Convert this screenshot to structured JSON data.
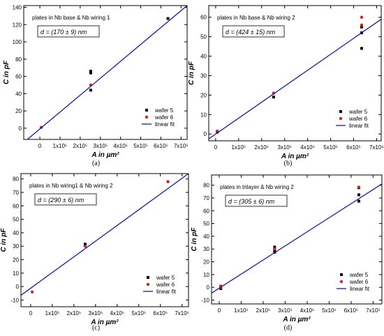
{
  "chart_data": [
    {
      "type": "scatter",
      "panel_label": "(a)",
      "annotation": "plates in Nb base & Nb wiring 1",
      "fit_label": "d = (170 ± 9) nm",
      "xlabel": "A in µm²",
      "ylabel": "C in pF",
      "xlim": [
        -80000,
        730000
      ],
      "ylim": [
        -13,
        142
      ],
      "xticks": [
        0,
        100000,
        200000,
        300000,
        400000,
        500000,
        600000,
        700000
      ],
      "xtick_labels": [
        "0",
        "1x10⁵",
        "2x10⁵",
        "3x10⁵",
        "4x10⁵",
        "5x10⁵",
        "6x10⁵",
        "7x10⁵"
      ],
      "yticks": [
        0,
        20,
        40,
        60,
        80,
        100,
        120,
        140
      ],
      "ytick_labels": [
        "0",
        "20",
        "40",
        "60",
        "80",
        "100",
        "120",
        "140"
      ],
      "series": [
        {
          "name": "wafer 5",
          "color": "#000000",
          "marker": "square",
          "points": [
            [
              252000,
              44
            ],
            [
              252000,
              64
            ],
            [
              252000,
              66
            ],
            [
              635000,
              127
            ]
          ]
        },
        {
          "name": "wafer 6",
          "color": "#d62020",
          "marker": "circle",
          "points": [
            [
              7000,
              1
            ],
            [
              252000,
              50
            ]
          ]
        },
        {
          "name": "linear fit",
          "color": "#1a1aa8",
          "marker": "line",
          "points": [
            [
              -80000,
              -16.5
            ],
            [
              730000,
              142
            ]
          ]
        }
      ],
      "legend_position": "bottom-right"
    },
    {
      "type": "scatter",
      "panel_label": "(b)",
      "annotation": "plates in Nb base & Nb wiring 2",
      "fit_label": "d = (424 ± 15) nm",
      "xlabel": "A in µm²",
      "ylabel": "C in pF",
      "xlim": [
        -30000,
        720000
      ],
      "ylim": [
        -3.5,
        66
      ],
      "xticks": [
        0,
        100000,
        200000,
        300000,
        400000,
        500000,
        600000,
        700000
      ],
      "xtick_labels": [
        "0",
        "1x10⁵",
        "2x10⁵",
        "3x10⁵",
        "4x10⁵",
        "5x10⁵",
        "6x10⁵",
        "7x10⁵"
      ],
      "yticks": [
        0,
        10,
        20,
        30,
        40,
        50,
        60
      ],
      "ytick_labels": [
        "0",
        "10",
        "20",
        "30",
        "40",
        "50",
        "60"
      ],
      "series": [
        {
          "name": "wafer 5",
          "color": "#000000",
          "marker": "square",
          "points": [
            [
              7000,
              1
            ],
            [
              252000,
              19
            ],
            [
              635000,
              44
            ],
            [
              635000,
              52
            ],
            [
              635000,
              55
            ]
          ]
        },
        {
          "name": "wafer 6",
          "color": "#d62020",
          "marker": "circle",
          "points": [
            [
              7000,
              1.5
            ],
            [
              252000,
              21
            ],
            [
              635000,
              56
            ],
            [
              635000,
              60
            ]
          ]
        },
        {
          "name": "linear fit",
          "color": "#1a1aa8",
          "marker": "line",
          "points": [
            [
              -30000,
              -2.5
            ],
            [
              720000,
              59
            ]
          ]
        }
      ],
      "legend_position": "bottom-right"
    },
    {
      "type": "scatter",
      "panel_label": "(c)",
      "annotation": "plates in Nb wiring1 & Nb wiring 2",
      "fit_label": "d = (290 ± 6) nm",
      "xlabel": "A in µm²",
      "ylabel": "C in pF",
      "xlim": [
        -45000,
        730000
      ],
      "ylim": [
        -15,
        84
      ],
      "xticks": [
        0,
        100000,
        200000,
        300000,
        400000,
        500000,
        600000,
        700000
      ],
      "xtick_labels": [
        "0",
        "1x10⁵",
        "2x10⁵",
        "3x10⁵",
        "4x10⁵",
        "5x10⁵",
        "6x10⁵",
        "7x10⁵"
      ],
      "yticks": [
        -10,
        0,
        10,
        20,
        30,
        40,
        50,
        60,
        70,
        80
      ],
      "ytick_labels": [
        "-10",
        "0",
        "10",
        "20",
        "30",
        "40",
        "50",
        "60",
        "70",
        "80"
      ],
      "series": [
        {
          "name": "wafer 5",
          "color": "#000000",
          "marker": "square",
          "points": [
            [
              252000,
              30.5
            ],
            [
              252000,
              31.5
            ]
          ]
        },
        {
          "name": "wafer 6",
          "color": "#d62020",
          "marker": "circle",
          "points": [
            [
              7000,
              -4
            ],
            [
              252000,
              30
            ],
            [
              635000,
              78
            ]
          ]
        },
        {
          "name": "linear fit",
          "color": "#1a1aa8",
          "marker": "line",
          "points": [
            [
              -45000,
              -6.5
            ],
            [
              730000,
              84
            ]
          ]
        }
      ],
      "legend_position": "bottom-right"
    },
    {
      "type": "scatter",
      "panel_label": "(d)",
      "annotation": "plates in trilayer & Nb wiring 2",
      "fit_label": "d = (305 ± 6) nm",
      "xlabel": "A in µm²",
      "ylabel": "C in pF",
      "xlim": [
        -35000,
        740000
      ],
      "ylim": [
        -13,
        88
      ],
      "xticks": [
        0,
        100000,
        200000,
        300000,
        400000,
        500000,
        600000,
        700000
      ],
      "xtick_labels": [
        "0",
        "1x10⁵",
        "2x10⁵",
        "3x10⁵",
        "4x10⁵",
        "5x10⁵",
        "6x10⁵",
        "7x10⁵"
      ],
      "yticks": [
        -10,
        0,
        10,
        20,
        30,
        40,
        50,
        60,
        70,
        80
      ],
      "ytick_labels": [
        "-10",
        "0",
        "10",
        "20",
        "30",
        "40",
        "50",
        "60",
        "70",
        "80"
      ],
      "series": [
        {
          "name": "wafer 5",
          "color": "#000000",
          "marker": "square",
          "points": [
            [
              7000,
              -1
            ],
            [
              7000,
              0.5
            ],
            [
              252000,
              27.5
            ],
            [
              252000,
              29
            ],
            [
              252000,
              31.5
            ],
            [
              635000,
              67.5
            ],
            [
              635000,
              72.5
            ],
            [
              635000,
              78
            ]
          ]
        },
        {
          "name": "wafer 6",
          "color": "#d62020",
          "marker": "circle",
          "points": [
            [
              7000,
              0
            ],
            [
              7000,
              1
            ],
            [
              252000,
              30
            ],
            [
              635000,
              78.5
            ]
          ]
        },
        {
          "name": "linear fit",
          "color": "#1a1aa8",
          "marker": "line",
          "points": [
            [
              -35000,
              -4.5
            ],
            [
              740000,
              81
            ]
          ]
        }
      ],
      "legend_position": "bottom-right"
    }
  ]
}
